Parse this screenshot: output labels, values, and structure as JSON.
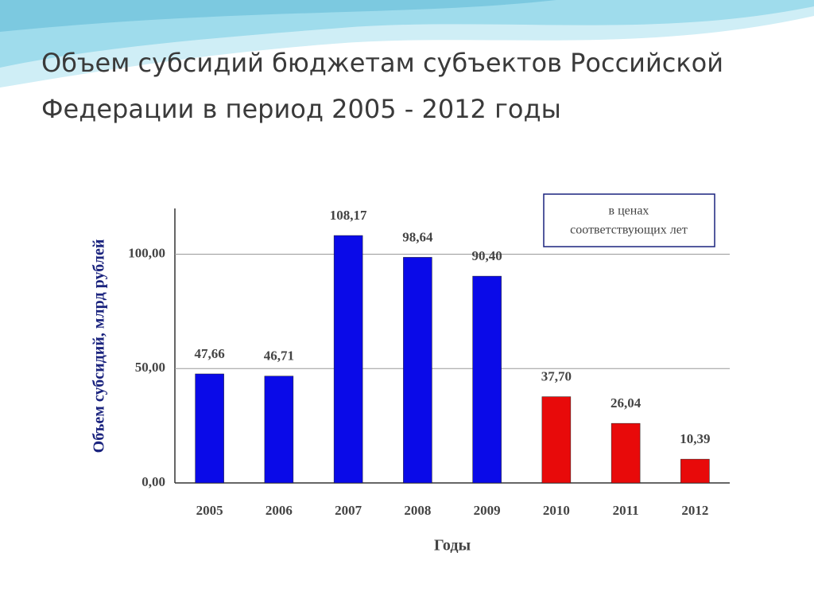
{
  "title": "Объем субсидий бюджетам субъектов Российской Федерации в период 2005 - 2012 годы",
  "chart_data": {
    "type": "bar",
    "categories": [
      "2005",
      "2006",
      "2007",
      "2008",
      "2009",
      "2010",
      "2011",
      "2012"
    ],
    "values": [
      47.66,
      46.71,
      108.17,
      98.64,
      90.4,
      37.7,
      26.04,
      10.39
    ],
    "value_labels": [
      "47,66",
      "46,71",
      "108,17",
      "98,64",
      "90,40",
      "37,70",
      "26,04",
      "10,39"
    ],
    "colors": [
      "#0a0ae8",
      "#0a0ae8",
      "#0a0ae8",
      "#0a0ae8",
      "#0a0ae8",
      "#e80a0a",
      "#e80a0a",
      "#e80a0a"
    ],
    "ylim": [
      0,
      120
    ],
    "yticks": [
      {
        "value": 0,
        "label": "0,00"
      },
      {
        "value": 50,
        "label": "50,00"
      },
      {
        "value": 100,
        "label": "100,00"
      }
    ],
    "grid": true,
    "ylabel": "Объем субсидий, млрд рублей",
    "xlabel": "Годы",
    "annotation": [
      "в ценах",
      "соответствующих лет"
    ]
  }
}
